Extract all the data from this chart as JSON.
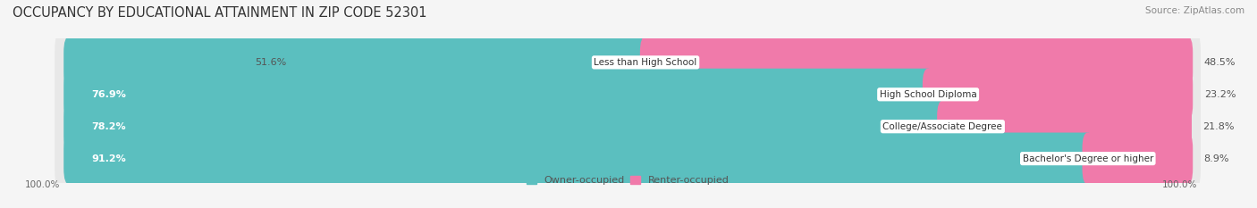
{
  "title": "OCCUPANCY BY EDUCATIONAL ATTAINMENT IN ZIP CODE 52301",
  "source": "Source: ZipAtlas.com",
  "categories": [
    "Less than High School",
    "High School Diploma",
    "College/Associate Degree",
    "Bachelor's Degree or higher"
  ],
  "owner_values": [
    51.6,
    76.9,
    78.2,
    91.2
  ],
  "renter_values": [
    48.5,
    23.2,
    21.8,
    8.9
  ],
  "owner_color": "#5bbfbf",
  "renter_color": "#f07aaa",
  "row_bg_color": "#e8e8e8",
  "bg_color": "#f5f5f5",
  "title_fontsize": 10.5,
  "label_fontsize": 8.0,
  "cat_fontsize": 7.5,
  "tick_fontsize": 7.5,
  "source_fontsize": 7.5,
  "legend_fontsize": 8.0,
  "left_axis_label": "100.0%",
  "right_axis_label": "100.0%"
}
